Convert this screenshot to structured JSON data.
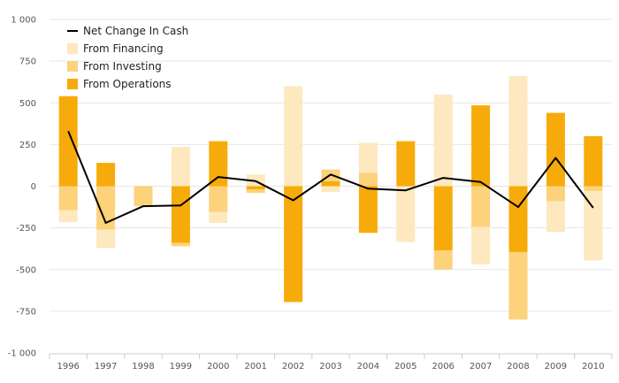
{
  "chart_data": {
    "type": "bar",
    "stacked": true,
    "categories": [
      "1996",
      "1997",
      "1998",
      "1999",
      "2000",
      "2001",
      "2002",
      "2003",
      "2004",
      "2005",
      "2006",
      "2007",
      "2008",
      "2009",
      "2010"
    ],
    "ylim": [
      -1000,
      1000
    ],
    "yticks": [
      -1000,
      -750,
      -500,
      -250,
      0,
      250,
      500,
      750,
      1000
    ],
    "ytick_labels": [
      "-1 000",
      "-750",
      "-500",
      "-250",
      "0",
      "250",
      "500",
      "750",
      "1 000"
    ],
    "grid": true,
    "legend_position": "top-left",
    "legend": [
      {
        "name": "Net Change In Cash",
        "kind": "line",
        "color": "#000000"
      },
      {
        "name": "From Financing",
        "kind": "bar",
        "color": "#fde8bf"
      },
      {
        "name": "From Investing",
        "kind": "bar",
        "color": "#fcd27a"
      },
      {
        "name": "From Operations",
        "kind": "bar",
        "color": "#f7ab0a"
      }
    ],
    "series": [
      {
        "name": "From Operations",
        "type": "bar",
        "color": "#f7ab0a",
        "values": [
          540,
          140,
          0,
          -340,
          270,
          -20,
          -695,
          30,
          -280,
          270,
          -385,
          485,
          -395,
          440,
          300
        ]
      },
      {
        "name": "From Investing",
        "type": "bar",
        "color": "#fcd27a",
        "values": [
          -145,
          -260,
          -120,
          -20,
          -155,
          -20,
          0,
          70,
          80,
          0,
          -115,
          -245,
          -405,
          -90,
          -30
        ]
      },
      {
        "name": "From Financing",
        "type": "bar",
        "color": "#fde8bf",
        "values": [
          -70,
          -110,
          0,
          235,
          -65,
          70,
          600,
          -35,
          180,
          -335,
          550,
          -225,
          660,
          -185,
          -415
        ]
      },
      {
        "name": "Net Change In Cash",
        "type": "line",
        "color": "#000000",
        "values": [
          330,
          -220,
          -120,
          -115,
          55,
          30,
          -85,
          70,
          -15,
          -25,
          50,
          25,
          -125,
          170,
          -130
        ]
      }
    ]
  }
}
